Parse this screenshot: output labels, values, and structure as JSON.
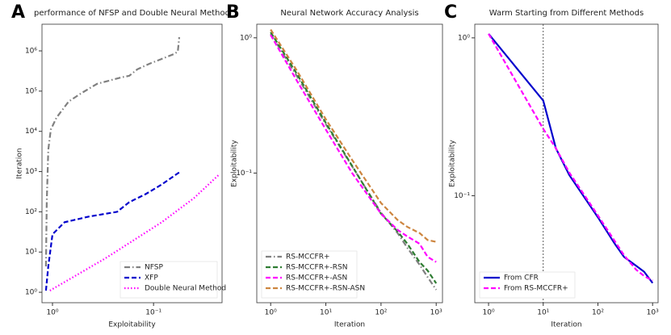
{
  "chart_data": [
    {
      "panel": "A",
      "type": "line",
      "title": "performance of NFSP and Double Neural Method",
      "xlabel": "Exploitability",
      "ylabel": "Iteration",
      "xlog": true,
      "ylog": true,
      "xlim": [
        1.27,
        0.021
      ],
      "ylim": [
        0.55,
        4600000
      ],
      "xticks": [
        {
          "value": 1,
          "label": "10⁰"
        },
        {
          "value": 0.1,
          "label": "10⁻¹"
        }
      ],
      "yticks": [
        {
          "value": 1,
          "label": "10⁰"
        },
        {
          "value": 10,
          "label": "10¹"
        },
        {
          "value": 100,
          "label": "10²"
        },
        {
          "value": 1000,
          "label": "10³"
        },
        {
          "value": 10000,
          "label": "10⁴"
        },
        {
          "value": 100000,
          "label": "10⁵"
        },
        {
          "value": 1000000,
          "label": "10⁶"
        }
      ],
      "legend": "lower right",
      "series": [
        {
          "name": "NFSP",
          "color": "#808080",
          "linestyle": "dashdot",
          "x": [
            1.16,
            1.14,
            1.1,
            1.04,
            0.912,
            0.692,
            0.525,
            0.363,
            0.209,
            0.174,
            0.145,
            0.11,
            0.083,
            0.063,
            0.0575,
            0.0557
          ],
          "values": [
            4.4,
            174,
            3470,
            11000,
            21900,
            55000,
            87000,
            151000,
            219000,
            240000,
            347000,
            479000,
            631000,
            832000,
            955000,
            2190000
          ]
        },
        {
          "name": "XFP",
          "color": "#0000cc",
          "linestyle": "dashed",
          "x": [
            1.16,
            1.1,
            1.0,
            0.759,
            0.437,
            0.229,
            0.174,
            0.12,
            0.083,
            0.0557
          ],
          "values": [
            1.1,
            4.4,
            27.5,
            55,
            76,
            100,
            174,
            275,
            479,
            955
          ]
        },
        {
          "name": "Double Neural Method",
          "color": "#ff00ff",
          "linestyle": "dotted",
          "x": [
            1.06,
            0.302,
            0.083,
            0.0398,
            0.0221
          ],
          "values": [
            1.1,
            6.9,
            55,
            219,
            871
          ]
        }
      ]
    },
    {
      "panel": "B",
      "type": "line",
      "title": "Neural Network Accuracy Analysis",
      "xlabel": "Iteration",
      "ylabel": "Exploitability",
      "xlog": true,
      "ylog": true,
      "xlim": [
        0.56,
        1300
      ],
      "ylim": [
        0.011,
        1.26
      ],
      "xticks": [
        {
          "value": 1,
          "label": "10⁰"
        },
        {
          "value": 10,
          "label": "10¹"
        },
        {
          "value": 100,
          "label": "10²"
        },
        {
          "value": 1000,
          "label": "10³"
        }
      ],
      "yticks": [
        {
          "value": 0.1,
          "label": "10⁻¹"
        },
        {
          "value": 1,
          "label": "10⁰"
        }
      ],
      "legend": "lower left",
      "series": [
        {
          "name": "RS-MCCFR+",
          "color": "#808080",
          "linestyle": "dashdot",
          "x": [
            1,
            3,
            10,
            30,
            100,
            200,
            300,
            500,
            700,
            1000
          ],
          "values": [
            1.07,
            0.52,
            0.23,
            0.112,
            0.051,
            0.036,
            0.028,
            0.021,
            0.017,
            0.0137
          ]
        },
        {
          "name": "RS-MCCFR+-RSN",
          "color": "#2e7d32",
          "linestyle": "dashed",
          "x": [
            1,
            3,
            10,
            30,
            100,
            200,
            300,
            500,
            700,
            1000
          ],
          "values": [
            1.1,
            0.54,
            0.235,
            0.113,
            0.05,
            0.037,
            0.03,
            0.022,
            0.019,
            0.0153
          ]
        },
        {
          "name": "RS-MCCFR+-ASN",
          "color": "#ff00ff",
          "linestyle": "dashed",
          "x": [
            1,
            3,
            10,
            30,
            100,
            200,
            300,
            500,
            700,
            1000
          ],
          "values": [
            1.05,
            0.48,
            0.21,
            0.1,
            0.05,
            0.038,
            0.034,
            0.03,
            0.024,
            0.022
          ]
        },
        {
          "name": "RS-MCCFR+-RSN-ASN",
          "color": "#cd853f",
          "linestyle": "dashed",
          "x": [
            1,
            3,
            10,
            30,
            100,
            200,
            300,
            500,
            700,
            1000
          ],
          "values": [
            1.15,
            0.57,
            0.25,
            0.125,
            0.06,
            0.045,
            0.04,
            0.036,
            0.032,
            0.031
          ]
        }
      ]
    },
    {
      "panel": "C",
      "type": "line",
      "title": "Warm Starting from Different Methods",
      "xlabel": "Iteration",
      "ylabel": "Exploitability",
      "xlog": true,
      "ylog": true,
      "xlim": [
        0.56,
        1260
      ],
      "ylim": [
        0.021,
        1.22
      ],
      "xticks": [
        {
          "value": 1,
          "label": "10⁰"
        },
        {
          "value": 10,
          "label": "10¹"
        },
        {
          "value": 100,
          "label": "10²"
        },
        {
          "value": 1000,
          "label": "10³"
        }
      ],
      "yticks": [
        {
          "value": 0.1,
          "label": "10⁻¹"
        },
        {
          "value": 1,
          "label": "10⁰"
        }
      ],
      "vline": 10,
      "legend": "lower left",
      "series": [
        {
          "name": "From CFR",
          "color": "#0000cc",
          "linestyle": "solid",
          "x": [
            1,
            10,
            17,
            30,
            100,
            200,
            300,
            500,
            700,
            1000
          ],
          "values": [
            1.06,
            0.4,
            0.2,
            0.135,
            0.073,
            0.05,
            0.041,
            0.036,
            0.033,
            0.028
          ]
        },
        {
          "name": "From RS-MCCFR+",
          "color": "#ff00ff",
          "linestyle": "dashed",
          "x": [
            1,
            10,
            17,
            30,
            100,
            200,
            300,
            500,
            700,
            1000
          ],
          "values": [
            1.06,
            0.265,
            0.2,
            0.14,
            0.075,
            0.052,
            0.042,
            0.034,
            0.031,
            0.029
          ]
        }
      ]
    }
  ]
}
